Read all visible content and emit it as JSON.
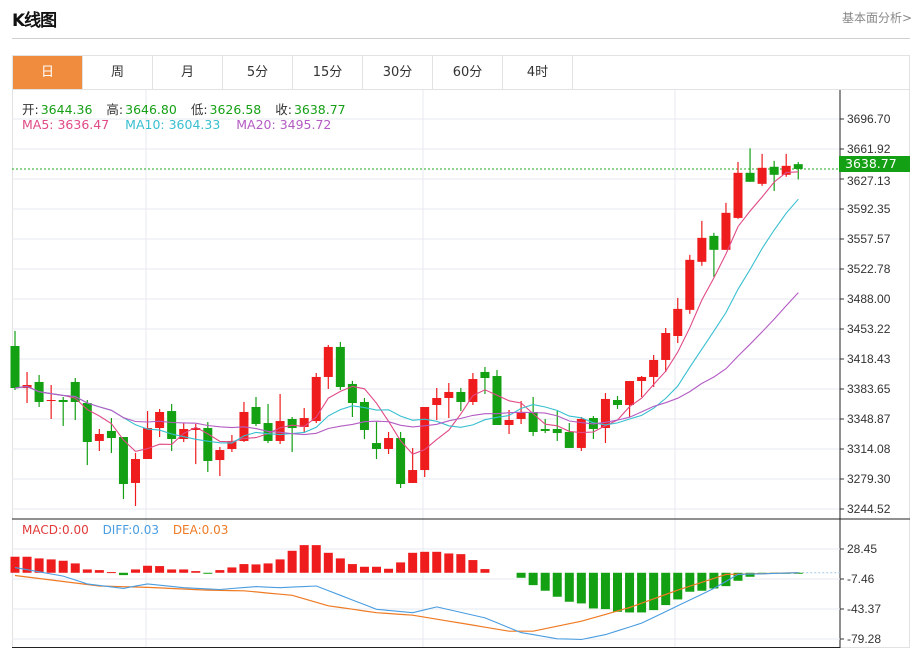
{
  "header": {
    "title": "K线图",
    "link": "基本面分析>"
  },
  "tabs": [
    {
      "label": "日",
      "active": true
    },
    {
      "label": "周"
    },
    {
      "label": "月"
    },
    {
      "label": "5分"
    },
    {
      "label": "15分"
    },
    {
      "label": "30分"
    },
    {
      "label": "60分"
    },
    {
      "label": "4时"
    }
  ],
  "info": {
    "open_label": "开:",
    "open": "3644.36",
    "high_label": "高:",
    "high": "3646.80",
    "low_label": "低:",
    "low": "3626.58",
    "close_label": "收:",
    "close": "3638.77",
    "ma5": "MA5: 3636.47",
    "ma10": "MA10: 3604.33",
    "ma20": "MA20: 3495.72",
    "macd": "MACD:0.00",
    "diff": "DIFF:0.03",
    "dea": "DEA:0.03"
  },
  "colors": {
    "up": "#ee1c1c",
    "down": "#13a013",
    "ma5": "#e04a86",
    "ma10": "#37bfcf",
    "ma20": "#b45cc4",
    "diff": "#4a9de0",
    "dea": "#ee7a24",
    "tab_active": "#f08c3e"
  },
  "chart_data": [
    {
      "type": "candlestick",
      "current_price": "3638.77",
      "ylim": [
        3244.52,
        3696.7
      ],
      "y_ticks": [
        "3696.70",
        "3661.92",
        "3627.13",
        "3592.35",
        "3557.57",
        "3522.78",
        "3488.00",
        "3453.22",
        "3418.43",
        "3383.65",
        "3348.87",
        "3314.08",
        "3279.30",
        "3244.52"
      ],
      "grid": true,
      "ohlc": [
        [
          3433.5,
          3450.9,
          3382.5,
          3384.8
        ],
        [
          3384.8,
          3403.4,
          3367.4,
          3388.3
        ],
        [
          3391.8,
          3399.9,
          3362.8,
          3368.6
        ],
        [
          3369.7,
          3388.3,
          3348.9,
          3370.9
        ],
        [
          3370.9,
          3374.4,
          3340.8,
          3368.6
        ],
        [
          3391.8,
          3396.4,
          3347.7,
          3368.6
        ],
        [
          3367.4,
          3370.9,
          3295.5,
          3322.2
        ],
        [
          3323.4,
          3337.3,
          3311.8,
          3331.5
        ],
        [
          3335.0,
          3350.0,
          3309.5,
          3326.8
        ],
        [
          3328.0,
          3328.0,
          3256.1,
          3273.5
        ],
        [
          3274.7,
          3309.5,
          3248.0,
          3302.5
        ],
        [
          3302.5,
          3358.1,
          3302.5,
          3338.4
        ],
        [
          3338.4,
          3360.5,
          3328.0,
          3357.0
        ],
        [
          3358.1,
          3366.3,
          3311.8,
          3325.7
        ],
        [
          3325.7,
          3344.2,
          3322.2,
          3337.3
        ],
        [
          3336.1,
          3343.1,
          3296.6,
          3338.4
        ],
        [
          3338.4,
          3345.4,
          3287.4,
          3300.2
        ],
        [
          3301.3,
          3316.4,
          3282.7,
          3312.9
        ],
        [
          3314.1,
          3330.3,
          3310.6,
          3323.4
        ],
        [
          3323.4,
          3368.6,
          3322.2,
          3357.0
        ],
        [
          3362.8,
          3374.4,
          3340.8,
          3343.1
        ],
        [
          3344.2,
          3366.3,
          3321.0,
          3323.4
        ],
        [
          3323.4,
          3377.9,
          3319.9,
          3346.5
        ],
        [
          3348.9,
          3351.2,
          3310.6,
          3338.4
        ],
        [
          3339.6,
          3361.6,
          3332.6,
          3350.0
        ],
        [
          3346.5,
          3402.2,
          3344.2,
          3397.6
        ],
        [
          3397.6,
          3434.7,
          3383.7,
          3432.4
        ],
        [
          3432.4,
          3438.2,
          3382.5,
          3386.0
        ],
        [
          3389.5,
          3393.0,
          3351.2,
          3367.4
        ],
        [
          3368.6,
          3373.2,
          3325.7,
          3336.1
        ],
        [
          3321.0,
          3345.4,
          3302.5,
          3314.1
        ],
        [
          3314.1,
          3333.8,
          3308.3,
          3326.8
        ],
        [
          3326.8,
          3333.8,
          3268.9,
          3273.5
        ],
        [
          3274.7,
          3315.3,
          3274.7,
          3289.7
        ],
        [
          3289.7,
          3362.8,
          3281.6,
          3362.8
        ],
        [
          3365.1,
          3384.8,
          3347.7,
          3373.2
        ],
        [
          3373.2,
          3390.6,
          3350.0,
          3380.2
        ],
        [
          3380.2,
          3384.8,
          3358.1,
          3368.6
        ],
        [
          3368.6,
          3402.2,
          3365.1,
          3395.2
        ],
        [
          3403.4,
          3409.2,
          3377.9,
          3396.4
        ],
        [
          3398.7,
          3405.7,
          3341.9,
          3341.9
        ],
        [
          3341.9,
          3359.3,
          3331.5,
          3347.7
        ],
        [
          3348.9,
          3369.7,
          3343.1,
          3355.8
        ],
        [
          3357.0,
          3374.4,
          3329.1,
          3333.8
        ],
        [
          3337.3,
          3348.9,
          3332.6,
          3335.0
        ],
        [
          3337.3,
          3358.1,
          3323.4,
          3332.6
        ],
        [
          3333.8,
          3344.2,
          3315.3,
          3315.3
        ],
        [
          3315.3,
          3351.2,
          3311.8,
          3348.9
        ],
        [
          3350.0,
          3352.3,
          3325.7,
          3337.3
        ],
        [
          3338.4,
          3379.0,
          3321.0,
          3372.1
        ],
        [
          3370.9,
          3375.5,
          3360.5,
          3365.1
        ],
        [
          3365.1,
          3392.9,
          3351.2,
          3392.9
        ],
        [
          3392.9,
          3398.7,
          3374.4,
          3397.6
        ],
        [
          3397.6,
          3423.1,
          3386.0,
          3417.3
        ],
        [
          3417.3,
          3454.4,
          3403.4,
          3448.6
        ],
        [
          3445.1,
          3489.2,
          3437.0,
          3476.5
        ],
        [
          3475.4,
          3539.2,
          3470.8,
          3533.4
        ],
        [
          3531.1,
          3578.6,
          3526.5,
          3558.9
        ],
        [
          3561.2,
          3564.7,
          3513.7,
          3545.0
        ],
        [
          3545.0,
          3599.5,
          3545.0,
          3587.9
        ],
        [
          3582.0,
          3646.9,
          3580.9,
          3634.3
        ],
        [
          3634.3,
          3662.7,
          3623.9,
          3623.9
        ],
        [
          3621.5,
          3656.3,
          3619.2,
          3640.1
        ],
        [
          3641.3,
          3648.2,
          3613.3,
          3632.0
        ],
        [
          3632.0,
          3656.3,
          3629.7,
          3642.4
        ],
        [
          3644.36,
          3646.8,
          3626.58,
          3638.77
        ]
      ],
      "ma_periods": [
        5,
        10,
        20
      ]
    },
    {
      "type": "macd",
      "ylim": [
        -85,
        40
      ],
      "y_ticks": [
        "28.45",
        "-7.46",
        "-43.37",
        "-79.28"
      ],
      "histogram": [
        19.2,
        19.2,
        17.2,
        16,
        14.4,
        11.2,
        4,
        3.2,
        0.8,
        -2.8,
        4,
        8.4,
        8,
        4,
        4,
        2,
        -0.8,
        3.2,
        6.4,
        10.4,
        10,
        11.2,
        16,
        26.3,
        33.1,
        33.1,
        23.9,
        17.2,
        10.4,
        7.2,
        7.2,
        4.8,
        12.4,
        23.9,
        25.1,
        25.1,
        23.1,
        22.3,
        15.2,
        4.4,
        0,
        0,
        -6,
        -14.8,
        -21.5,
        -28.7,
        -34.7,
        -36.7,
        -42.7,
        -43.5,
        -46.7,
        -47.5,
        -47.5,
        -44.7,
        -38.7,
        -31.9,
        -22.7,
        -21.5,
        -18.8,
        -16,
        -9.6,
        -4.8,
        -1.6,
        -0.8,
        -0.8,
        -0.4
      ],
      "diff": [
        [
          0,
          6.2
        ],
        [
          4,
          -4
        ],
        [
          6,
          -13.3
        ],
        [
          9,
          -18.7
        ],
        [
          11,
          -13.3
        ],
        [
          14,
          -17.9
        ],
        [
          17,
          -20
        ],
        [
          20,
          -16.6
        ],
        [
          22,
          -17.9
        ],
        [
          25,
          -15.8
        ],
        [
          27,
          -27
        ],
        [
          30,
          -43.7
        ],
        [
          33,
          -47.8
        ],
        [
          35,
          -40.8
        ],
        [
          39,
          -54
        ],
        [
          42,
          -71.6
        ],
        [
          45,
          -79
        ],
        [
          47,
          -79.9
        ],
        [
          49,
          -74
        ],
        [
          52,
          -60.3
        ],
        [
          55,
          -39.5
        ],
        [
          58,
          -18.7
        ],
        [
          60,
          -2
        ],
        [
          65,
          0.03
        ]
      ],
      "dea": [
        [
          0,
          -3.3
        ],
        [
          7,
          -15.8
        ],
        [
          11,
          -17.5
        ],
        [
          16,
          -20.8
        ],
        [
          19,
          -21.6
        ],
        [
          23,
          -27
        ],
        [
          26,
          -39.5
        ],
        [
          30,
          -47.8
        ],
        [
          33,
          -50.8
        ],
        [
          37,
          -60.3
        ],
        [
          41,
          -69.9
        ],
        [
          43,
          -69.9
        ],
        [
          47,
          -58
        ],
        [
          51,
          -41.6
        ],
        [
          55,
          -20.8
        ],
        [
          59,
          -2
        ],
        [
          65,
          0.03
        ]
      ]
    }
  ]
}
